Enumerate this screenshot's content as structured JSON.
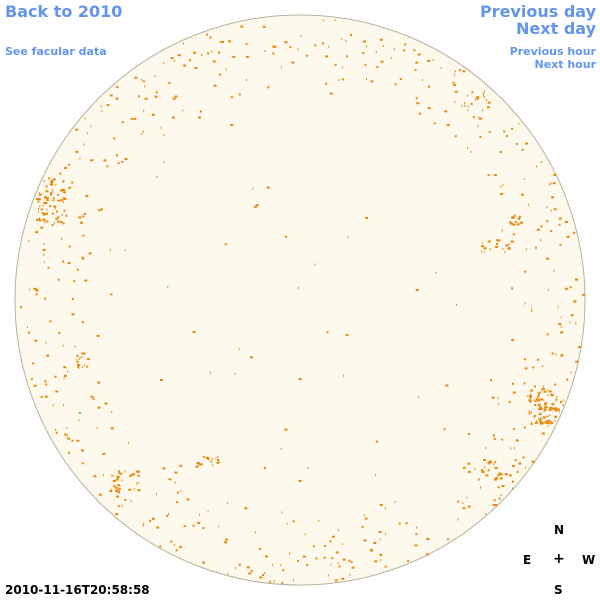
{
  "nav": {
    "back_label": "Back to 2010",
    "facular_label": "See facular data",
    "prev_day_label": "Previous day",
    "next_day_label": "Next day",
    "prev_hour_label": "Previous hour",
    "next_hour_label": "Next hour"
  },
  "compass": {
    "north": "N",
    "east": "E",
    "center": "+",
    "west": "W",
    "south": "S"
  },
  "timestamp": "2010-11-16T20:58:58",
  "colors": {
    "link": "#6495ed",
    "disk_fill": "#fef9ed",
    "disk_edge": "#b8b0a0",
    "facula": "#e8880a"
  }
}
